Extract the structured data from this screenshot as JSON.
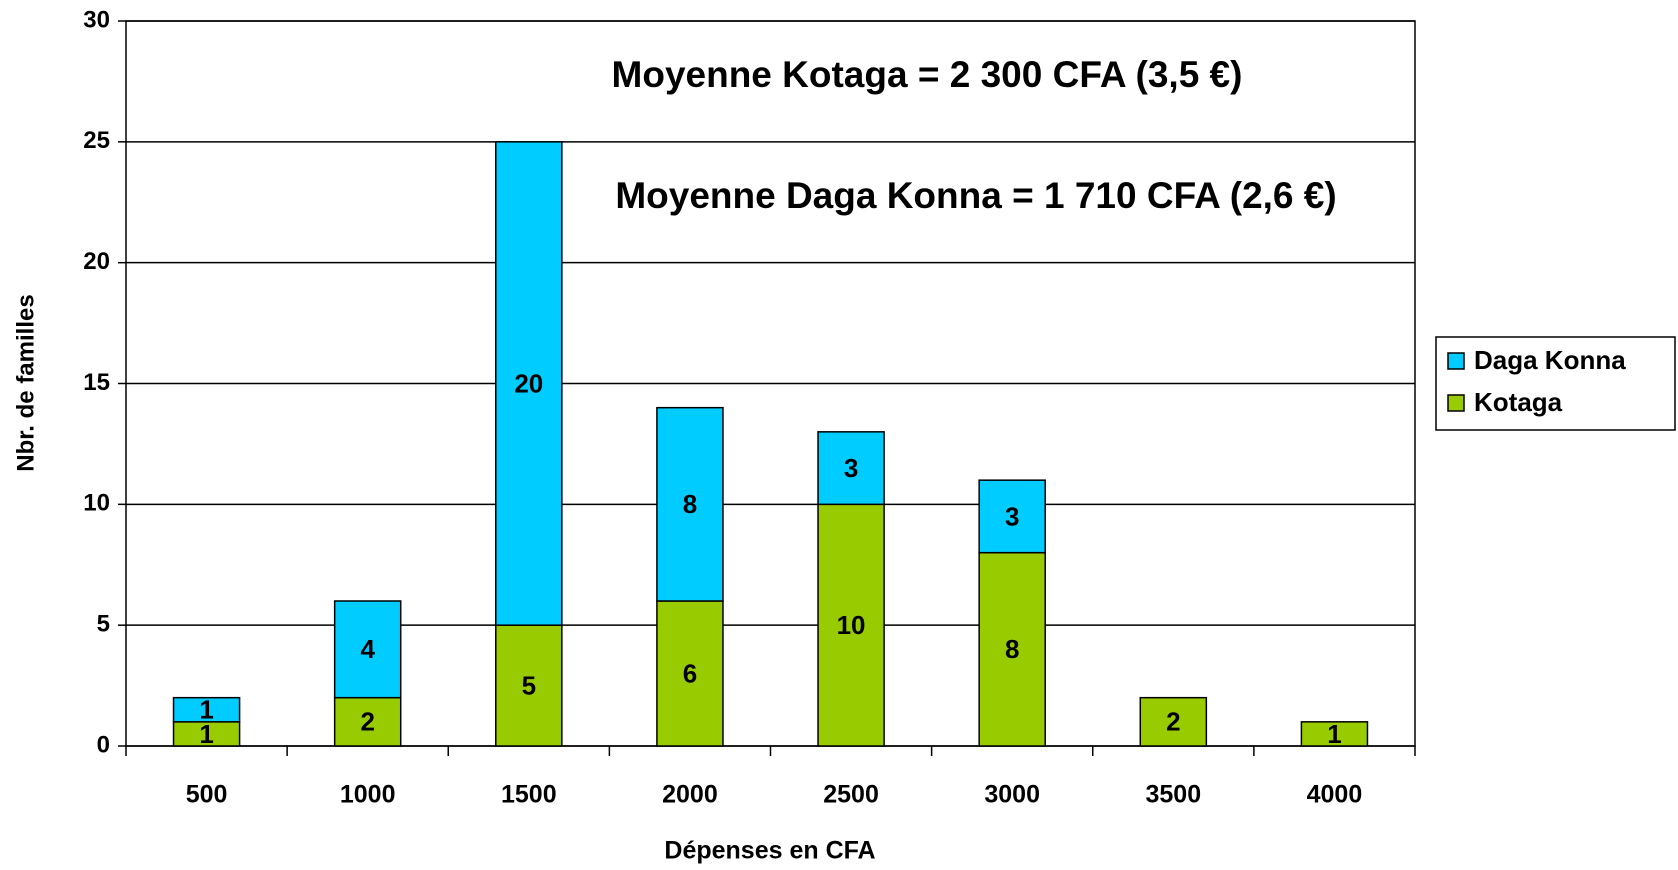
{
  "chart_data": {
    "type": "stacked_bar",
    "xlabel": "Dépenses en CFA",
    "ylabel": "Nbr. de familles",
    "annotations": [
      "Moyenne Kotaga = 2 300 CFA (3,5 €)",
      "Moyenne Daga Konna = 1 710 CFA (2,6 €)"
    ],
    "categories": [
      "500",
      "1000",
      "1500",
      "2000",
      "2500",
      "3000",
      "3500",
      "4000"
    ],
    "series": [
      {
        "name": "Kotaga",
        "color": "#99cc00",
        "values": [
          1,
          2,
          5,
          6,
          10,
          8,
          2,
          1
        ]
      },
      {
        "name": "Daga Konna",
        "color": "#00ccff",
        "values": [
          1,
          4,
          20,
          8,
          3,
          3,
          null,
          null
        ]
      }
    ],
    "ylim": [
      0,
      30
    ],
    "yticks": [
      0,
      5,
      10,
      15,
      20,
      25,
      30
    ],
    "grid": true,
    "legend": "right"
  }
}
